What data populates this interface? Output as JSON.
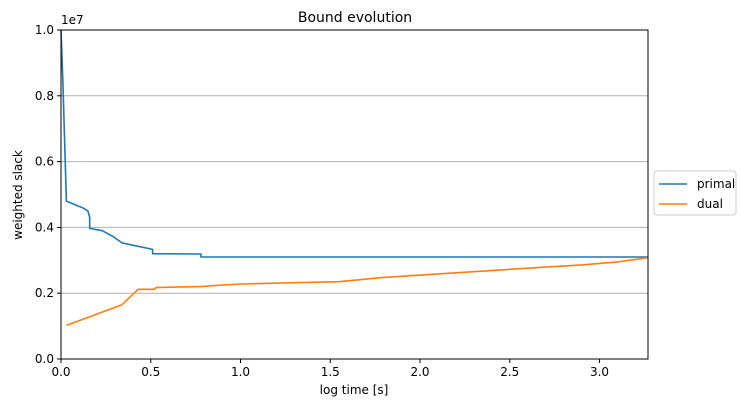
{
  "chart_data": {
    "type": "line",
    "title": "Bound evolution",
    "xlabel": "log time [s]",
    "ylabel": "weighted slack",
    "y_multiplier": "1e7",
    "xlim": [
      0,
      3.27
    ],
    "ylim": [
      0,
      10000000
    ],
    "x_ticks": [
      "0.0",
      "0.5",
      "1.0",
      "1.5",
      "2.0",
      "2.5",
      "3.0"
    ],
    "y_ticks": [
      "0.0",
      "0.2",
      "0.4",
      "0.6",
      "0.8",
      "1.0"
    ],
    "grid": "horizontal",
    "legend_position": "right",
    "series": [
      {
        "name": "primal",
        "color": "#1f77b4",
        "points": [
          [
            0.0,
            10000000
          ],
          [
            0.01,
            8500000
          ],
          [
            0.03,
            4800000
          ],
          [
            0.12,
            4600000
          ],
          [
            0.15,
            4500000
          ],
          [
            0.16,
            4300000
          ],
          [
            0.16,
            3970000
          ],
          [
            0.23,
            3900000
          ],
          [
            0.29,
            3720000
          ],
          [
            0.34,
            3530000
          ],
          [
            0.4,
            3460000
          ],
          [
            0.51,
            3330000
          ],
          [
            0.51,
            3200000
          ],
          [
            0.78,
            3190000
          ],
          [
            0.78,
            3100000
          ],
          [
            3.27,
            3100000
          ]
        ]
      },
      {
        "name": "dual",
        "color": "#ff7f0e",
        "points": [
          [
            0.03,
            1020000
          ],
          [
            0.34,
            1650000
          ],
          [
            0.43,
            2120000
          ],
          [
            0.52,
            2120000
          ],
          [
            0.53,
            2170000
          ],
          [
            0.58,
            2180000
          ],
          [
            0.78,
            2200000
          ],
          [
            0.9,
            2250000
          ],
          [
            1.0,
            2280000
          ],
          [
            1.3,
            2320000
          ],
          [
            1.55,
            2350000
          ],
          [
            1.8,
            2480000
          ],
          [
            2.2,
            2620000
          ],
          [
            2.6,
            2760000
          ],
          [
            2.9,
            2860000
          ],
          [
            3.1,
            2950000
          ],
          [
            3.27,
            3080000
          ]
        ]
      }
    ]
  }
}
